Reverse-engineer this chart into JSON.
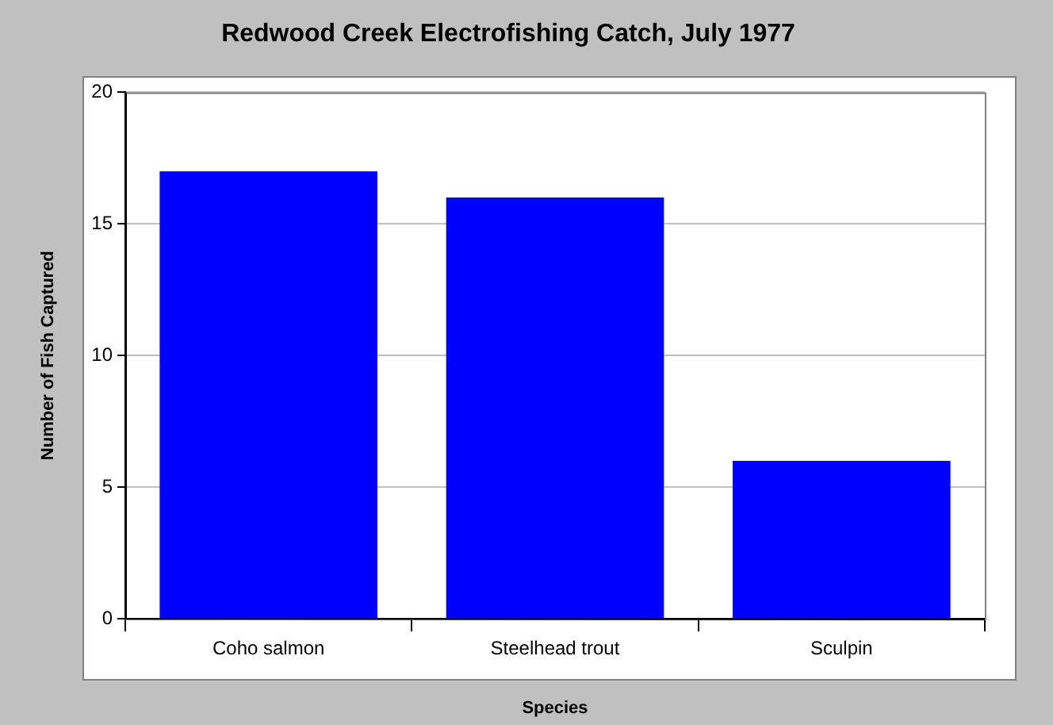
{
  "chart_data": {
    "type": "bar",
    "title": "Redwood Creek Electrofishing Catch, July 1977",
    "xlabel": "Species",
    "ylabel": "Number of Fish Captured",
    "categories": [
      "Coho salmon",
      "Steelhead trout",
      "Sculpin"
    ],
    "values": [
      17,
      16,
      6
    ],
    "color": "#0000ff",
    "ylim": [
      0,
      20
    ],
    "yticks": [
      0,
      5,
      10,
      15,
      20
    ],
    "grid": "y",
    "legend": false
  }
}
